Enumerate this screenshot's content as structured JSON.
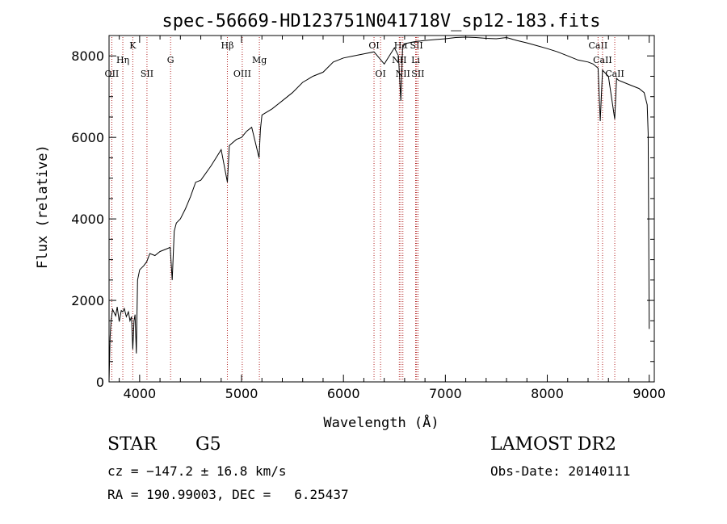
{
  "chart_data": {
    "type": "line",
    "title": "spec-56669-HD123751N041718V_sp12-183.fits",
    "xlabel": "Wavelength (Å)",
    "ylabel": "Flux (relative)",
    "xlim": [
      3700,
      9050
    ],
    "ylim": [
      0,
      8500
    ],
    "x_ticks": [
      4000,
      5000,
      6000,
      7000,
      8000,
      9000
    ],
    "y_ticks": [
      0,
      2000,
      4000,
      6000,
      8000
    ],
    "grid": false,
    "line_color": "#000000",
    "marker_color": "#b22222",
    "series": [
      {
        "x": [
          3700,
          3710,
          3720,
          3735,
          3750,
          3765,
          3780,
          3800,
          3820,
          3835,
          3850,
          3870,
          3890,
          3905,
          3920,
          3933,
          3945,
          3955,
          3968,
          3980,
          4000,
          4020,
          4040,
          4070,
          4100,
          4150,
          4200,
          4250,
          4300,
          4320,
          4340,
          4360,
          4400,
          4450,
          4500,
          4550,
          4600,
          4700,
          4800,
          4861,
          4880,
          4950,
          5000,
          5050,
          5100,
          5172,
          5185,
          5200,
          5300,
          5400,
          5500,
          5600,
          5700,
          5800,
          5900,
          6000,
          6100,
          6200,
          6300,
          6400,
          6500,
          6540,
          6563,
          6580,
          6600,
          6700,
          6800,
          6900,
          7000,
          7100,
          7200,
          7300,
          7400,
          7500,
          7600,
          7700,
          7800,
          7900,
          8000,
          8100,
          8200,
          8300,
          8400,
          8450,
          8498,
          8520,
          8542,
          8560,
          8600,
          8662,
          8680,
          8700,
          8750,
          8800,
          8850,
          8900,
          8950,
          8980,
          8990,
          9000
        ],
        "y": [
          0,
          1100,
          1500,
          1780,
          1700,
          1620,
          1840,
          1480,
          1750,
          1720,
          1800,
          1600,
          1720,
          1500,
          1600,
          800,
          1500,
          1650,
          700,
          2500,
          2750,
          2800,
          2850,
          2950,
          3150,
          3100,
          3200,
          3250,
          3300,
          2500,
          3700,
          3900,
          4000,
          4250,
          4550,
          4900,
          4950,
          5300,
          5700,
          4900,
          5800,
          5950,
          6000,
          6150,
          6250,
          5500,
          6200,
          6550,
          6700,
          6900,
          7100,
          7350,
          7500,
          7600,
          7850,
          7950,
          8000,
          8050,
          8100,
          7800,
          8200,
          8000,
          6900,
          8200,
          8300,
          8350,
          8380,
          8400,
          8420,
          8450,
          8460,
          8450,
          8430,
          8420,
          8450,
          8380,
          8320,
          8250,
          8180,
          8100,
          8000,
          7900,
          7850,
          7800,
          7700,
          6400,
          7650,
          7600,
          7500,
          6450,
          7450,
          7400,
          7350,
          7300,
          7250,
          7200,
          7100,
          6800,
          6100,
          1300
        ]
      }
    ],
    "lines": [
      {
        "name": "OII",
        "wave": 3727,
        "row": 2
      },
      {
        "name": "Hη",
        "wave": 3835,
        "row": 1
      },
      {
        "name": "K",
        "wave": 3933,
        "row": 0
      },
      {
        "name": "SII",
        "wave": 4072,
        "row": 2
      },
      {
        "name": "G",
        "wave": 4304,
        "row": 1
      },
      {
        "name": "Hβ",
        "wave": 4861,
        "row": 0
      },
      {
        "name": "OIII",
        "wave": 5007,
        "row": 2
      },
      {
        "name": "Mg",
        "wave": 5175,
        "row": 1
      },
      {
        "name": "OI",
        "wave": 6300,
        "row": 0
      },
      {
        "name": "OI",
        "wave": 6364,
        "row": 2
      },
      {
        "name": "Hα",
        "wave": 6563,
        "row": 0
      },
      {
        "name": "NII",
        "wave": 6548,
        "row": 1
      },
      {
        "name": "NII",
        "wave": 6583,
        "row": 2
      },
      {
        "name": "SII",
        "wave": 6717,
        "row": 0
      },
      {
        "name": "Li",
        "wave": 6708,
        "row": 1
      },
      {
        "name": "SII",
        "wave": 6731,
        "row": 2
      },
      {
        "name": "CaII",
        "wave": 8498,
        "row": 0
      },
      {
        "name": "CaII",
        "wave": 8542,
        "row": 1
      },
      {
        "name": "CaII",
        "wave": 8662,
        "row": 2
      }
    ]
  },
  "info": {
    "class": "STAR",
    "subclass": "G5",
    "cz": "cz = −147.2 ± 16.8 km/s",
    "radec": "RA = 190.99003, DEC =   6.25437",
    "survey": "LAMOST DR2",
    "obsdate": "Obs-Date: 20140111"
  }
}
